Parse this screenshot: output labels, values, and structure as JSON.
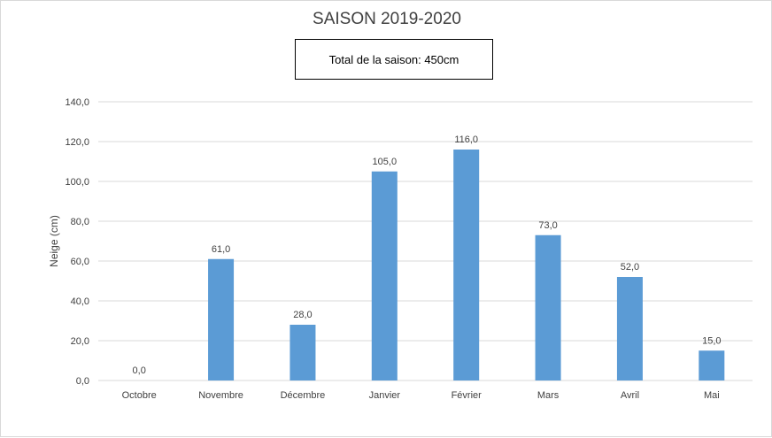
{
  "chart_data": {
    "type": "bar",
    "title": "SAISON 2019-2020",
    "annotation": "Total de la saison: 450cm",
    "ylabel": "Neige (cm)",
    "xlabel": "",
    "ylim": [
      0,
      140
    ],
    "ytick_step": 20,
    "yticks": [
      "0,0",
      "20,0",
      "40,0",
      "60,0",
      "80,0",
      "100,0",
      "120,0",
      "140,0"
    ],
    "categories": [
      "Octobre",
      "Novembre",
      "Décembre",
      "Janvier",
      "Février",
      "Mars",
      "Avril",
      "Mai"
    ],
    "values": [
      0,
      61,
      28,
      105,
      116,
      73,
      52,
      15
    ],
    "data_labels": [
      "0,0",
      "61,0",
      "28,0",
      "105,0",
      "116,0",
      "73,0",
      "52,0",
      "15,0"
    ],
    "grid": true,
    "legend": "none",
    "bar_color": "#5b9bd5",
    "grid_color": "#d9d9d9"
  }
}
